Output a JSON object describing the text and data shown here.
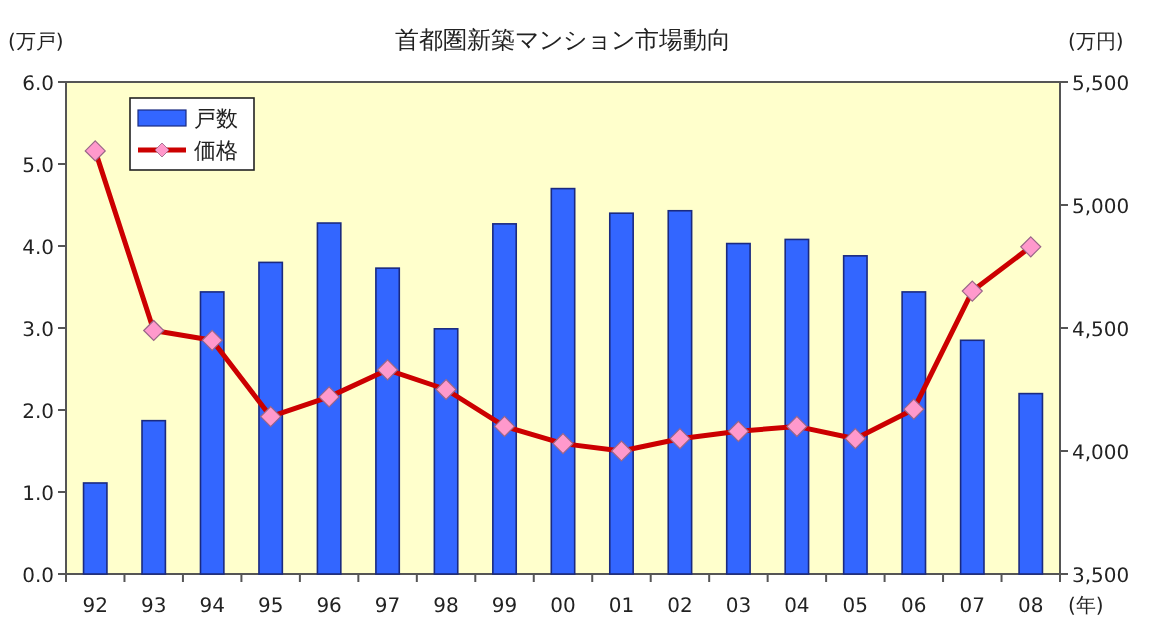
{
  "chart_data": {
    "type": "bar",
    "title": "首都圏新築マンション市場動向",
    "ylabel": "(万戸)",
    "y2label": "(万円)",
    "xlabel": "(年)",
    "categories": [
      "92",
      "93",
      "94",
      "95",
      "96",
      "97",
      "98",
      "99",
      "00",
      "01",
      "02",
      "03",
      "04",
      "05",
      "06",
      "07",
      "08"
    ],
    "series": [
      {
        "name": "戸数",
        "color": "#3366ff",
        "values": [
          1.11,
          1.87,
          3.44,
          3.8,
          4.28,
          3.73,
          2.99,
          4.27,
          4.7,
          4.4,
          4.43,
          4.03,
          4.08,
          3.88,
          3.44,
          2.85,
          2.2
        ]
      },
      {
        "name": "価格",
        "type": "line",
        "axis": "y2",
        "color": "#cc0000",
        "values": [
          5220,
          4490,
          4450,
          4140,
          4220,
          4330,
          4250,
          4100,
          4030,
          4000,
          4050,
          4080,
          4100,
          4050,
          4170,
          4650,
          4830
        ]
      }
    ],
    "ylim": [
      0,
      6
    ],
    "yticks": [
      {
        "value": 0,
        "label": "0.0"
      },
      {
        "value": 1,
        "label": "1.0"
      },
      {
        "value": 2,
        "label": "2.0"
      },
      {
        "value": 3,
        "label": "3.0"
      },
      {
        "value": 4,
        "label": "4.0"
      },
      {
        "value": 5,
        "label": "5.0"
      },
      {
        "value": 6,
        "label": "6.0"
      }
    ],
    "y2lim": [
      3500,
      5500
    ],
    "y2ticks": [
      {
        "value": 3500,
        "label": "3,500"
      },
      {
        "value": 4000,
        "label": "4,000"
      },
      {
        "value": 4500,
        "label": "4,500"
      },
      {
        "value": 5000,
        "label": "5,000"
      },
      {
        "value": 5500,
        "label": "5,500"
      }
    ],
    "grid": false,
    "legend": "top left",
    "marker": "diamond",
    "line_style": "solid"
  }
}
